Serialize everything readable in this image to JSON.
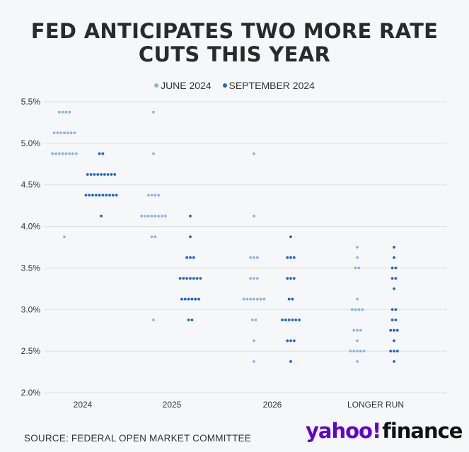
{
  "title_line1": "FED ANTICIPATES TWO MORE RATE",
  "title_line2": "CUTS THIS YEAR",
  "source": "SOURCE: FEDERAL OPEN MARKET COMMITTEE",
  "logo": {
    "yahoo": "yahoo!",
    "finance": "finance"
  },
  "colors": {
    "june": "#8ab4e8",
    "september": "#1a66cc",
    "grid": "#dddddd"
  },
  "chart_data": {
    "type": "scatter",
    "subtype": "dot-plot",
    "categories": [
      "2024",
      "2025",
      "2026",
      "LONGER RUN"
    ],
    "yticks": [
      "5.5%",
      "5.0%",
      "4.5%",
      "4.0%",
      "3.5%",
      "3.0%",
      "2.5%",
      "2.0%"
    ],
    "ylim": [
      2.0,
      5.5
    ],
    "grid": true,
    "legend_position": "top-center",
    "series": [
      {
        "name": "JUNE 2024",
        "color": "#8ab4e8",
        "dots": [
          [
            [
              5.375,
              4
            ],
            [
              5.125,
              7
            ],
            [
              4.875,
              8
            ],
            [
              3.875,
              1
            ]
          ],
          [
            [
              5.375,
              1
            ],
            [
              4.875,
              1
            ],
            [
              4.375,
              4
            ],
            [
              4.125,
              8
            ],
            [
              3.875,
              2
            ],
            [
              2.875,
              1
            ]
          ],
          [
            [
              4.875,
              1
            ],
            [
              4.125,
              1
            ],
            [
              3.625,
              3
            ],
            [
              3.375,
              3
            ],
            [
              3.125,
              7
            ],
            [
              2.875,
              2
            ],
            [
              2.625,
              1
            ],
            [
              2.375,
              1
            ]
          ],
          [
            [
              3.75,
              1
            ],
            [
              3.625,
              1
            ],
            [
              3.5,
              2
            ],
            [
              3.125,
              1
            ],
            [
              3.0,
              4
            ],
            [
              2.75,
              3
            ],
            [
              2.625,
              1
            ],
            [
              2.5,
              5
            ],
            [
              2.375,
              1
            ]
          ]
        ]
      },
      {
        "name": "SEPTEMBER 2024",
        "color": "#1a66cc",
        "dots": [
          [
            [
              4.875,
              2
            ],
            [
              4.625,
              9
            ],
            [
              4.375,
              10
            ],
            [
              4.125,
              1
            ]
          ],
          [
            [
              4.125,
              1
            ],
            [
              3.875,
              1
            ],
            [
              3.625,
              3
            ],
            [
              3.375,
              7
            ],
            [
              3.125,
              6
            ],
            [
              2.875,
              2
            ]
          ],
          [
            [
              3.875,
              1
            ],
            [
              3.625,
              3
            ],
            [
              3.375,
              3
            ],
            [
              3.125,
              2
            ],
            [
              2.875,
              6
            ],
            [
              2.625,
              3
            ],
            [
              2.375,
              1
            ]
          ],
          [
            [
              3.75,
              1
            ],
            [
              3.625,
              1
            ],
            [
              3.5,
              2
            ],
            [
              3.375,
              2
            ],
            [
              3.25,
              1
            ],
            [
              3.0,
              2
            ],
            [
              2.875,
              2
            ],
            [
              2.75,
              3
            ],
            [
              2.625,
              1
            ],
            [
              2.5,
              3
            ],
            [
              2.375,
              1
            ]
          ]
        ]
      }
    ]
  }
}
